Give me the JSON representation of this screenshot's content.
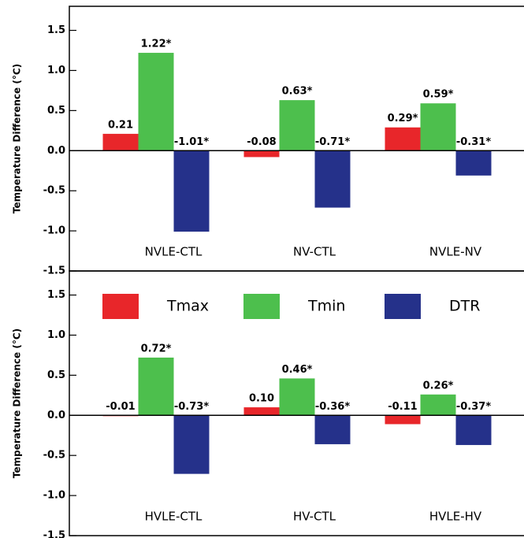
{
  "chart_data": [
    {
      "type": "bar",
      "y_label": "Temperature Difference (°C)",
      "categories": [
        "NVLE-CTL",
        "NV-CTL",
        "NVLE-NV"
      ],
      "series": [
        {
          "name": "Tmax",
          "color": "#e8262a",
          "values": [
            0.21,
            -0.08,
            0.29
          ],
          "value_labels": [
            "0.21",
            "-0.08",
            "0.29*"
          ]
        },
        {
          "name": "Tmin",
          "color": "#4dbf4d",
          "values": [
            1.22,
            0.63,
            0.59
          ],
          "value_labels": [
            "1.22*",
            "0.63*",
            "0.59*"
          ]
        },
        {
          "name": "DTR",
          "color": "#25318a",
          "values": [
            -1.01,
            -0.71,
            -0.31
          ],
          "value_labels": [
            "-1.01*",
            "-0.71*",
            "-0.31*"
          ]
        }
      ],
      "ylim": [
        -1.5,
        1.8
      ],
      "yticks": [
        -1.5,
        {
          "value": -1.0,
          "label": "-1.0"
        },
        -0.5,
        {
          "value": 0,
          "label": "0.0"
        },
        0.5,
        {
          "value": 1.0,
          "label": "1.0"
        },
        1.5
      ]
    },
    {
      "type": "bar",
      "y_label": "Temperature Difference (°C)",
      "categories": [
        "HVLE-CTL",
        "HV-CTL",
        "HVLE-HV"
      ],
      "series": [
        {
          "name": "Tmax",
          "color": "#e8262a",
          "values": [
            -0.01,
            0.1,
            -0.11
          ],
          "value_labels": [
            "-0.01",
            "0.10",
            "-0.11"
          ]
        },
        {
          "name": "Tmin",
          "color": "#4dbf4d",
          "values": [
            0.72,
            0.46,
            0.26
          ],
          "value_labels": [
            "0.72*",
            "0.46*",
            "0.26*"
          ]
        },
        {
          "name": "DTR",
          "color": "#25318a",
          "values": [
            -0.73,
            -0.36,
            -0.37
          ],
          "value_labels": [
            "-0.73*",
            "-0.36*",
            "-0.37*"
          ]
        }
      ],
      "ylim": [
        -1.5,
        1.8
      ],
      "yticks": [
        -1.5,
        {
          "value": -1.0,
          "label": "-1.0"
        },
        -0.5,
        {
          "value": 0,
          "label": "0.0"
        },
        0.5,
        {
          "value": 1.0,
          "label": "1.0"
        },
        1.5
      ],
      "legend": "top"
    }
  ]
}
